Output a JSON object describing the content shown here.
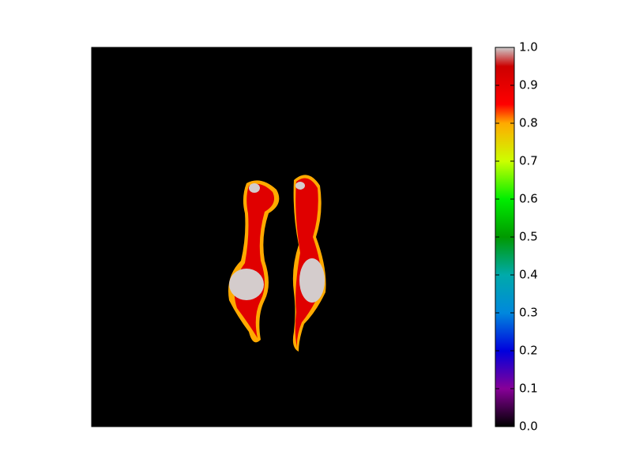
{
  "chart_data": {
    "type": "image",
    "colorbar": {
      "lim": [
        0,
        1
      ],
      "ticks": [
        {
          "value": 0,
          "label": "0.0"
        },
        {
          "value": 0.1,
          "label": "0.1"
        },
        {
          "value": 0.2,
          "label": "0.2"
        },
        {
          "value": 0.3,
          "label": "0.3"
        },
        {
          "value": 0.4,
          "label": "0.4"
        },
        {
          "value": 0.5,
          "label": "0.5"
        },
        {
          "value": 0.6,
          "label": "0.6"
        },
        {
          "value": 0.7,
          "label": "0.7"
        },
        {
          "value": 0.8,
          "label": "0.8"
        },
        {
          "value": 0.9,
          "label": "0.9"
        },
        {
          "value": 1,
          "label": "1.0"
        }
      ]
    }
  }
}
